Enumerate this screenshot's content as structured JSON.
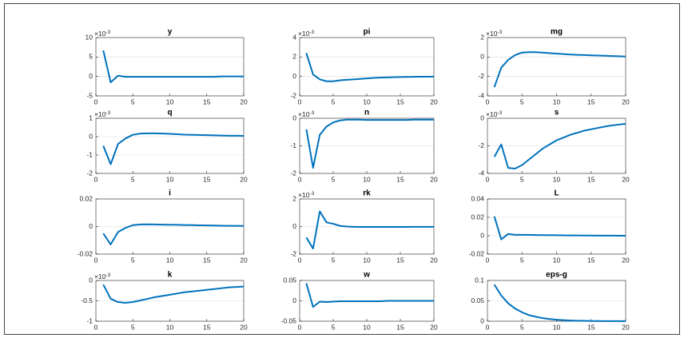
{
  "chart_data": [
    {
      "type": "line",
      "title": "y",
      "exponent_base": "×10",
      "exponent_power": "-3",
      "color": "#0072BD",
      "grid": "y",
      "xlim": [
        0,
        20
      ],
      "xticks": [
        0,
        5,
        10,
        15,
        20
      ],
      "ylim": [
        -5,
        10
      ],
      "yticks": [
        -5,
        0,
        5,
        10
      ],
      "x": [
        1,
        2,
        3,
        4,
        5,
        6,
        7,
        8,
        9,
        10,
        11,
        12,
        13,
        14,
        15,
        16,
        17,
        18,
        19,
        20
      ],
      "values": [
        6.7,
        -1.5,
        0.2,
        -0.1,
        -0.1,
        -0.1,
        -0.1,
        -0.1,
        -0.1,
        -0.1,
        -0.1,
        -0.1,
        -0.1,
        -0.1,
        -0.1,
        -0.1,
        0,
        0,
        0,
        0
      ]
    },
    {
      "type": "line",
      "title": "pi",
      "exponent_base": "×10",
      "exponent_power": "-3",
      "color": "#0072BD",
      "grid": "y",
      "xlim": [
        0,
        20
      ],
      "xticks": [
        0,
        5,
        10,
        15,
        20
      ],
      "ylim": [
        -2,
        4
      ],
      "yticks": [
        -2,
        0,
        2,
        4
      ],
      "x": [
        1,
        2,
        3,
        4,
        5,
        6,
        7,
        8,
        9,
        10,
        11,
        12,
        13,
        14,
        15,
        16,
        17,
        18,
        19,
        20
      ],
      "values": [
        2.4,
        0.2,
        -0.3,
        -0.5,
        -0.5,
        -0.4,
        -0.35,
        -0.3,
        -0.25,
        -0.2,
        -0.15,
        -0.12,
        -0.1,
        -0.08,
        -0.06,
        -0.05,
        -0.04,
        -0.03,
        -0.03,
        -0.02
      ]
    },
    {
      "type": "line",
      "title": "mg",
      "exponent_base": "×10",
      "exponent_power": "-3",
      "color": "#0072BD",
      "grid": "y",
      "xlim": [
        0,
        20
      ],
      "xticks": [
        0,
        5,
        10,
        15,
        20
      ],
      "ylim": [
        -4,
        2
      ],
      "yticks": [
        -4,
        -2,
        0,
        2
      ],
      "x": [
        1,
        2,
        3,
        4,
        5,
        6,
        7,
        8,
        9,
        10,
        11,
        12,
        13,
        14,
        15,
        16,
        17,
        18,
        19,
        20
      ],
      "values": [
        -3.1,
        -1.1,
        -0.3,
        0.2,
        0.45,
        0.5,
        0.5,
        0.45,
        0.4,
        0.35,
        0.3,
        0.25,
        0.22,
        0.2,
        0.17,
        0.15,
        0.13,
        0.1,
        0.08,
        0.05
      ]
    },
    {
      "type": "line",
      "title": "q",
      "exponent_base": "×10",
      "exponent_power": "-3",
      "color": "#0072BD",
      "grid": "y",
      "xlim": [
        0,
        20
      ],
      "xticks": [
        0,
        5,
        10,
        15,
        20
      ],
      "ylim": [
        -2,
        1
      ],
      "yticks": [
        -2,
        -1,
        0,
        1
      ],
      "x": [
        1,
        2,
        3,
        4,
        5,
        6,
        7,
        8,
        9,
        10,
        11,
        12,
        13,
        14,
        15,
        16,
        17,
        18,
        19,
        20
      ],
      "values": [
        -0.5,
        -1.5,
        -0.4,
        -0.1,
        0.1,
        0.17,
        0.18,
        0.18,
        0.17,
        0.15,
        0.13,
        0.11,
        0.1,
        0.09,
        0.08,
        0.07,
        0.06,
        0.05,
        0.05,
        0.04
      ]
    },
    {
      "type": "line",
      "title": "n",
      "exponent_base": "×10",
      "exponent_power": "-3",
      "color": "#0072BD",
      "grid": "y",
      "xlim": [
        0,
        20
      ],
      "xticks": [
        0,
        5,
        10,
        15,
        20
      ],
      "ylim": [
        -2,
        0
      ],
      "yticks": [
        -2,
        -1,
        0
      ],
      "x": [
        1,
        2,
        3,
        4,
        5,
        6,
        7,
        8,
        9,
        10,
        11,
        12,
        13,
        14,
        15,
        16,
        17,
        18,
        19,
        20
      ],
      "values": [
        -0.4,
        -1.8,
        -0.6,
        -0.3,
        -0.15,
        -0.08,
        -0.05,
        -0.05,
        -0.05,
        -0.06,
        -0.06,
        -0.06,
        -0.06,
        -0.06,
        -0.06,
        -0.06,
        -0.05,
        -0.05,
        -0.05,
        -0.05
      ]
    },
    {
      "type": "line",
      "title": "s",
      "exponent_base": "×10",
      "exponent_power": "-3",
      "color": "#0072BD",
      "grid": "y",
      "xlim": [
        0,
        20
      ],
      "xticks": [
        0,
        5,
        10,
        15,
        20
      ],
      "ylim": [
        -4,
        0
      ],
      "yticks": [
        -4,
        -2,
        0
      ],
      "x": [
        1,
        2,
        3,
        4,
        5,
        6,
        7,
        8,
        9,
        10,
        11,
        12,
        13,
        14,
        15,
        16,
        17,
        18,
        19,
        20
      ],
      "values": [
        -2.8,
        -1.9,
        -3.6,
        -3.65,
        -3.4,
        -3.0,
        -2.6,
        -2.2,
        -1.9,
        -1.6,
        -1.4,
        -1.2,
        -1.05,
        -0.9,
        -0.8,
        -0.7,
        -0.6,
        -0.52,
        -0.46,
        -0.4
      ]
    },
    {
      "type": "line",
      "title": "i",
      "color": "#0072BD",
      "grid": "y",
      "xlim": [
        0,
        20
      ],
      "xticks": [
        0,
        5,
        10,
        15,
        20
      ],
      "ylim": [
        -0.02,
        0.02
      ],
      "yticks": [
        -0.02,
        0,
        0.02
      ],
      "x": [
        1,
        2,
        3,
        4,
        5,
        6,
        7,
        8,
        9,
        10,
        11,
        12,
        13,
        14,
        15,
        16,
        17,
        18,
        19,
        20
      ],
      "values": [
        -0.005,
        -0.013,
        -0.004,
        -0.001,
        0.001,
        0.0015,
        0.0016,
        0.0015,
        0.0014,
        0.0013,
        0.0012,
        0.0011,
        0.001,
        0.0009,
        0.0008,
        0.0007,
        0.0006,
        0.0005,
        0.0005,
        0.0004
      ]
    },
    {
      "type": "line",
      "title": "rk",
      "exponent_base": "×10",
      "exponent_power": "-3",
      "color": "#0072BD",
      "grid": "y",
      "xlim": [
        0,
        20
      ],
      "xticks": [
        0,
        5,
        10,
        15,
        20
      ],
      "ylim": [
        -2,
        2
      ],
      "yticks": [
        -2,
        0,
        2
      ],
      "x": [
        1,
        2,
        3,
        4,
        5,
        6,
        7,
        8,
        9,
        10,
        11,
        12,
        13,
        14,
        15,
        16,
        17,
        18,
        19,
        20
      ],
      "values": [
        -0.8,
        -1.6,
        1.1,
        0.3,
        0.2,
        0.05,
        0,
        -0.02,
        -0.03,
        -0.03,
        -0.03,
        -0.03,
        -0.03,
        -0.03,
        -0.03,
        -0.03,
        -0.02,
        -0.02,
        -0.02,
        -0.02
      ]
    },
    {
      "type": "line",
      "title": "L",
      "color": "#0072BD",
      "grid": "y",
      "xlim": [
        0,
        20
      ],
      "xticks": [
        0,
        5,
        10,
        15,
        20
      ],
      "ylim": [
        -0.02,
        0.04
      ],
      "yticks": [
        -0.02,
        0,
        0.02,
        0.04
      ],
      "x": [
        1,
        2,
        3,
        4,
        5,
        6,
        7,
        8,
        9,
        10,
        11,
        12,
        13,
        14,
        15,
        16,
        17,
        18,
        19,
        20
      ],
      "values": [
        0.021,
        -0.004,
        0.002,
        0.001,
        0.001,
        0.001,
        0.0008,
        0.0007,
        0.0006,
        0.0005,
        0.0004,
        0.0003,
        0.0003,
        0.0002,
        0.0002,
        0.0001,
        0.0001,
        0.0001,
        0,
        0
      ]
    },
    {
      "type": "line",
      "title": "k",
      "exponent_base": "×10",
      "exponent_power": "-3",
      "color": "#0072BD",
      "grid": "y",
      "xlim": [
        0,
        20
      ],
      "xticks": [
        0,
        5,
        10,
        15,
        20
      ],
      "ylim": [
        -1,
        0
      ],
      "yticks": [
        -1,
        -0.5,
        0
      ],
      "x": [
        1,
        2,
        3,
        4,
        5,
        6,
        7,
        8,
        9,
        10,
        11,
        12,
        13,
        14,
        15,
        16,
        17,
        18,
        19,
        20
      ],
      "values": [
        -0.1,
        -0.45,
        -0.53,
        -0.55,
        -0.53,
        -0.49,
        -0.45,
        -0.41,
        -0.38,
        -0.35,
        -0.32,
        -0.29,
        -0.27,
        -0.25,
        -0.23,
        -0.21,
        -0.19,
        -0.17,
        -0.16,
        -0.15
      ]
    },
    {
      "type": "line",
      "title": "w",
      "color": "#0072BD",
      "grid": "y",
      "xlim": [
        0,
        20
      ],
      "xticks": [
        0,
        5,
        10,
        15,
        20
      ],
      "ylim": [
        -0.05,
        0.05
      ],
      "yticks": [
        -0.05,
        0,
        0.05
      ],
      "x": [
        1,
        2,
        3,
        4,
        5,
        6,
        7,
        8,
        9,
        10,
        11,
        12,
        13,
        14,
        15,
        16,
        17,
        18,
        19,
        20
      ],
      "values": [
        0.043,
        -0.015,
        -0.002,
        -0.003,
        -0.002,
        -0.001,
        -0.001,
        -0.001,
        -0.001,
        -0.001,
        -0.001,
        -0.001,
        0,
        0,
        0,
        0,
        0,
        0,
        0,
        0
      ]
    },
    {
      "type": "line",
      "title": "eps-g",
      "color": "#0072BD",
      "grid": "y",
      "xlim": [
        0,
        20
      ],
      "xticks": [
        0,
        5,
        10,
        15,
        20
      ],
      "ylim": [
        0,
        0.1
      ],
      "yticks": [
        0,
        0.05,
        0.1
      ],
      "x": [
        1,
        2,
        3,
        4,
        5,
        6,
        7,
        8,
        9,
        10,
        11,
        12,
        13,
        14,
        15,
        16,
        17,
        18,
        19,
        20
      ],
      "values": [
        0.09,
        0.063,
        0.044,
        0.031,
        0.022,
        0.015,
        0.011,
        0.0075,
        0.0053,
        0.0037,
        0.0026,
        0.0018,
        0.0013,
        0.0009,
        0.0006,
        0.0004,
        0.0003,
        0.0002,
        0.0002,
        0.0001
      ]
    }
  ]
}
